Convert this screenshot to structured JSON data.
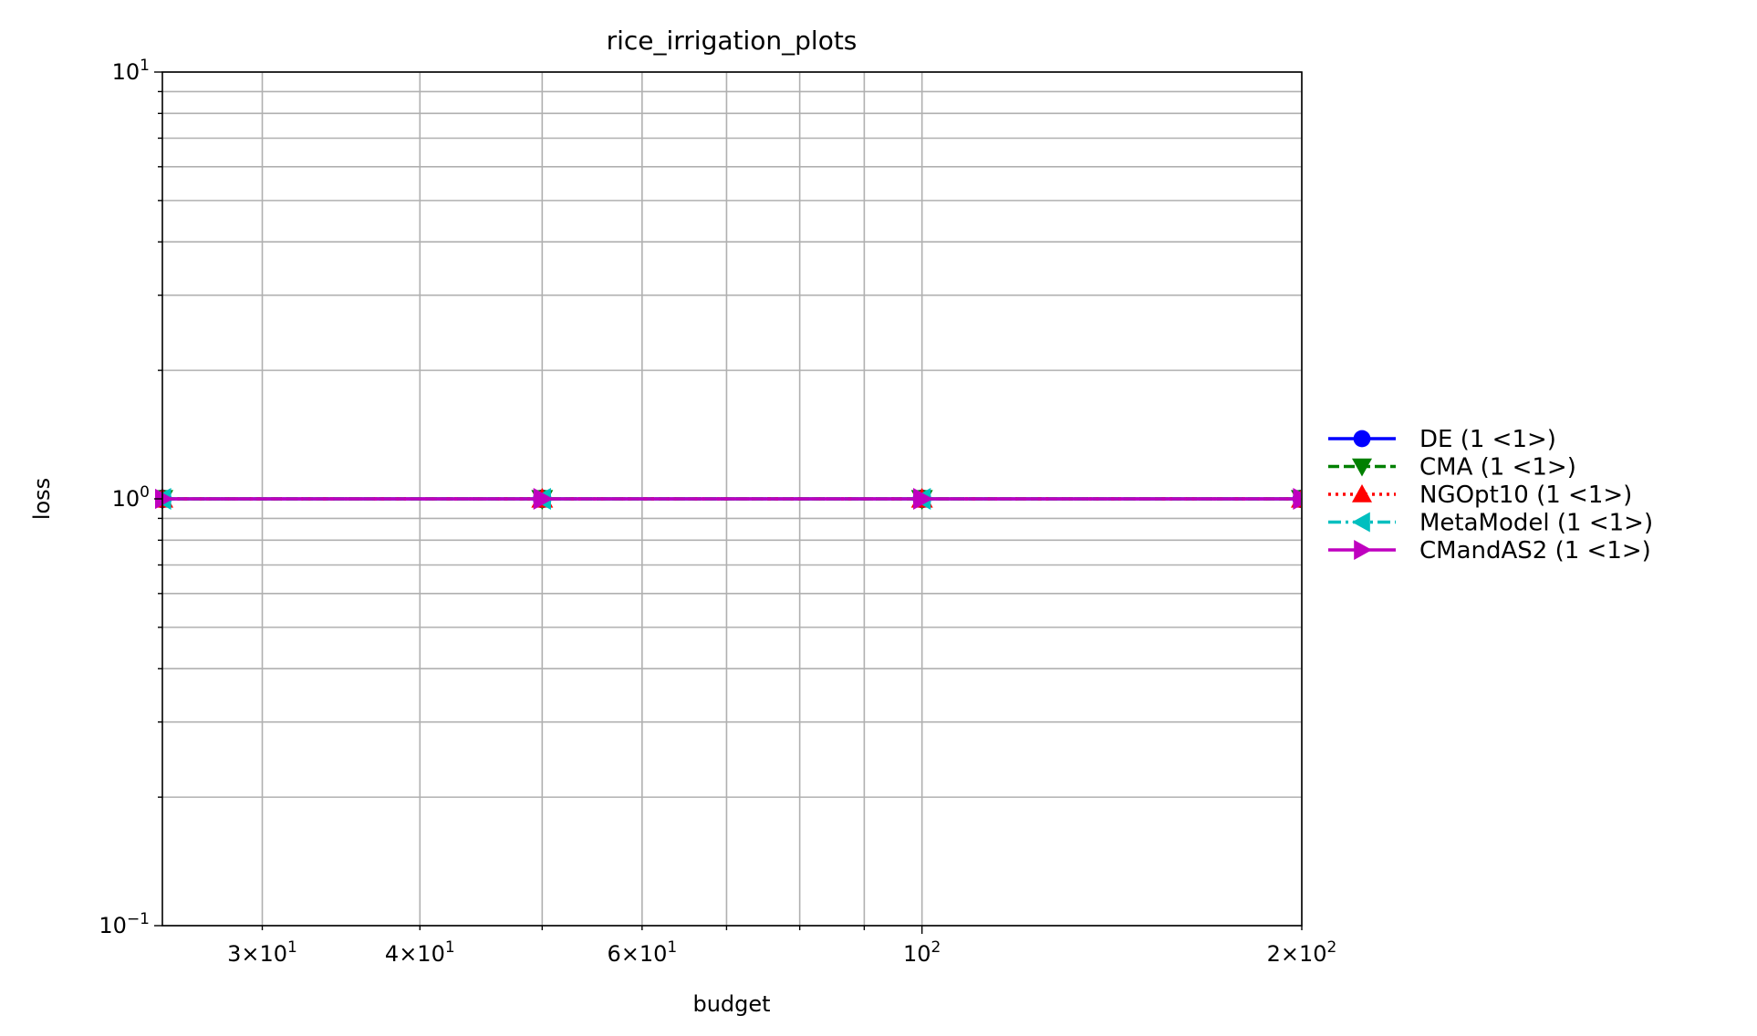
{
  "chart_data": {
    "type": "line",
    "title": "rice_irrigation_plots",
    "xlabel": "budget",
    "ylabel": "loss",
    "xscale": "log",
    "yscale": "log",
    "xlim": [
      25,
      200
    ],
    "ylim": [
      0.1,
      10
    ],
    "grid": true,
    "legend_position": "right",
    "x_ticks": [
      {
        "value": 30,
        "mant": "3",
        "exp": "1"
      },
      {
        "value": 40,
        "mant": "4",
        "exp": "1"
      },
      {
        "value": 60,
        "mant": "6",
        "exp": "1"
      },
      {
        "value": 100,
        "mant": "",
        "exp": "2"
      },
      {
        "value": 200,
        "mant": "2",
        "exp": "2"
      }
    ],
    "y_ticks": [
      {
        "value": 10,
        "exp": "1"
      },
      {
        "value": 1,
        "exp": "0"
      },
      {
        "value": 0.1,
        "exp": "−1"
      }
    ],
    "series": [
      {
        "name": "DE (1 <1>)",
        "color": "#0000ff",
        "dash": "solid",
        "marker": "circle",
        "x": [
          25,
          50,
          100,
          200
        ],
        "y": [
          1,
          1,
          1,
          1
        ]
      },
      {
        "name": "CMA (1 <1>)",
        "color": "#008000",
        "dash": "dashed",
        "marker": "triangle-down",
        "x": [
          25,
          50,
          100,
          200
        ],
        "y": [
          1,
          1,
          1,
          1
        ]
      },
      {
        "name": "NGOpt10 (1 <1>)",
        "color": "#ff0000",
        "dash": "dotted",
        "marker": "triangle-up",
        "x": [
          25,
          50,
          100,
          200
        ],
        "y": [
          1,
          1,
          1,
          1
        ]
      },
      {
        "name": "MetaModel (1 <1>)",
        "color": "#00bfbf",
        "dash": "dashdot",
        "marker": "triangle-left",
        "x": [
          25,
          50,
          100,
          200
        ],
        "y": [
          1,
          1,
          1,
          1
        ]
      },
      {
        "name": "CMandAS2 (1 <1>)",
        "color": "#bf00bf",
        "dash": "solid",
        "marker": "triangle-right",
        "x": [
          25,
          50,
          100,
          200
        ],
        "y": [
          1,
          1,
          1,
          1
        ]
      }
    ]
  }
}
